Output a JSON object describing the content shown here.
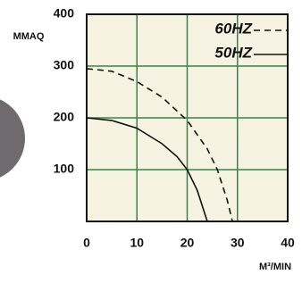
{
  "chart_data": {
    "type": "line",
    "y_label": "MMAQ",
    "x_label": "M³/MIN",
    "xlim": [
      0,
      40
    ],
    "xticks": [
      0,
      10,
      20,
      30,
      40
    ],
    "ylim": [
      0,
      400
    ],
    "yticks": [
      100,
      200,
      300,
      400
    ],
    "grid": true,
    "grid_color": "#2e8b3e",
    "legend_position": "upper right",
    "series": [
      {
        "name": "60HZ",
        "color": "#111111",
        "linestyle": "dashed",
        "x": [
          0,
          5,
          10,
          15,
          20,
          24,
          26,
          28,
          29
        ],
        "values": [
          295,
          290,
          270,
          240,
          195,
          140,
          100,
          40,
          0
        ]
      },
      {
        "name": "50HZ",
        "color": "#111111",
        "linestyle": "solid",
        "x": [
          0,
          5,
          10,
          15,
          18,
          20,
          22,
          24
        ],
        "values": [
          200,
          195,
          180,
          150,
          125,
          100,
          60,
          0
        ]
      }
    ]
  }
}
